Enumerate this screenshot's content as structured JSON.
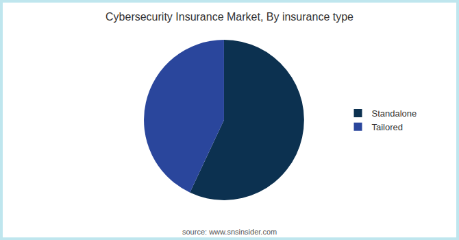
{
  "chart_data": {
    "type": "pie",
    "title": "Cybersecurity Insurance Market, By insurance type",
    "categories": [
      "Standalone",
      "Tailored"
    ],
    "values": [
      57,
      43
    ],
    "colors": [
      "#0c3150",
      "#2a469c"
    ],
    "legend": "right",
    "data_labels": false,
    "annotations": [
      "source: www.snsinsider.com"
    ]
  }
}
